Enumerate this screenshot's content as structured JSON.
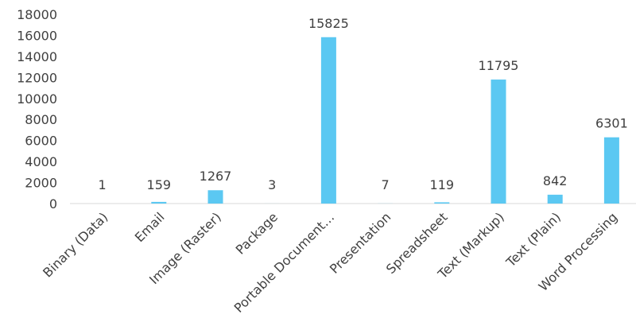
{
  "chart_data": {
    "type": "bar",
    "title": "",
    "xlabel": "",
    "ylabel": "",
    "categories": [
      "Binary (Data)",
      "Email",
      "Image (Raster)",
      "Package",
      "Portable Document…",
      "Presentation",
      "Spreadsheet",
      "Text (Markup)",
      "Text (Plain)",
      "Word Processing"
    ],
    "values": [
      1,
      159,
      1267,
      3,
      15825,
      7,
      119,
      11795,
      842,
      6301
    ],
    "data_labels": [
      "1",
      "159",
      "1267",
      "3",
      "15825",
      "7",
      "119",
      "11795",
      "842",
      "6301"
    ],
    "ylim": [
      0,
      18000
    ],
    "yticks": [
      "0",
      "2000",
      "4000",
      "6000",
      "8000",
      "10000",
      "12000",
      "14000",
      "16000",
      "18000"
    ],
    "grid": false,
    "legend": "none",
    "bar_color": "#5BC8F2",
    "axis_color": "#D9D9D9"
  }
}
